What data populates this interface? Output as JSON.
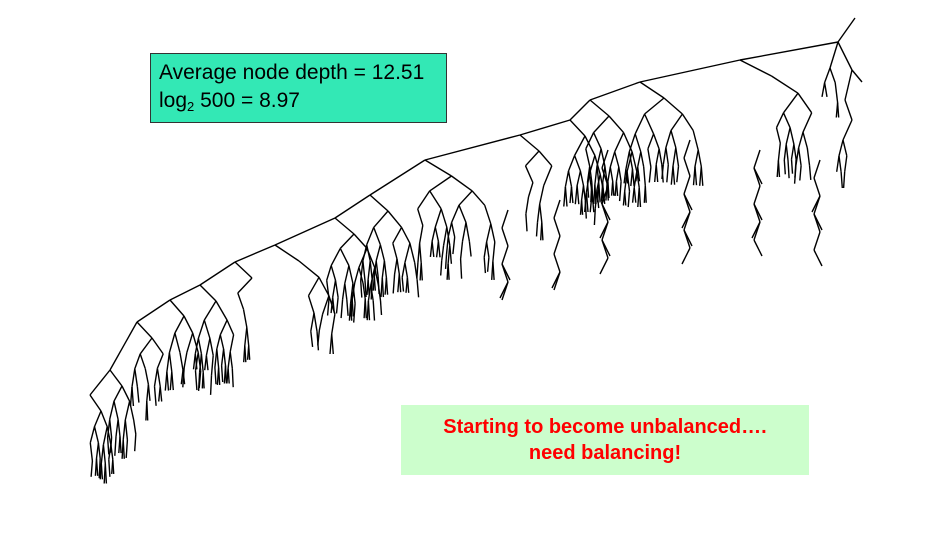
{
  "stats_box": {
    "depth_text": "Average node depth = 12.51",
    "log_prefix": "log",
    "log_base": "2",
    "log_value": " 500 = 8.97",
    "background": "#33e8b5"
  },
  "callout": {
    "line1": "Starting to become unbalanced….",
    "line2": "need balancing!",
    "text_color": "#ff0000",
    "background": "#ccfecc"
  },
  "tree": {
    "node_count": 500,
    "line_color": "#000000"
  }
}
